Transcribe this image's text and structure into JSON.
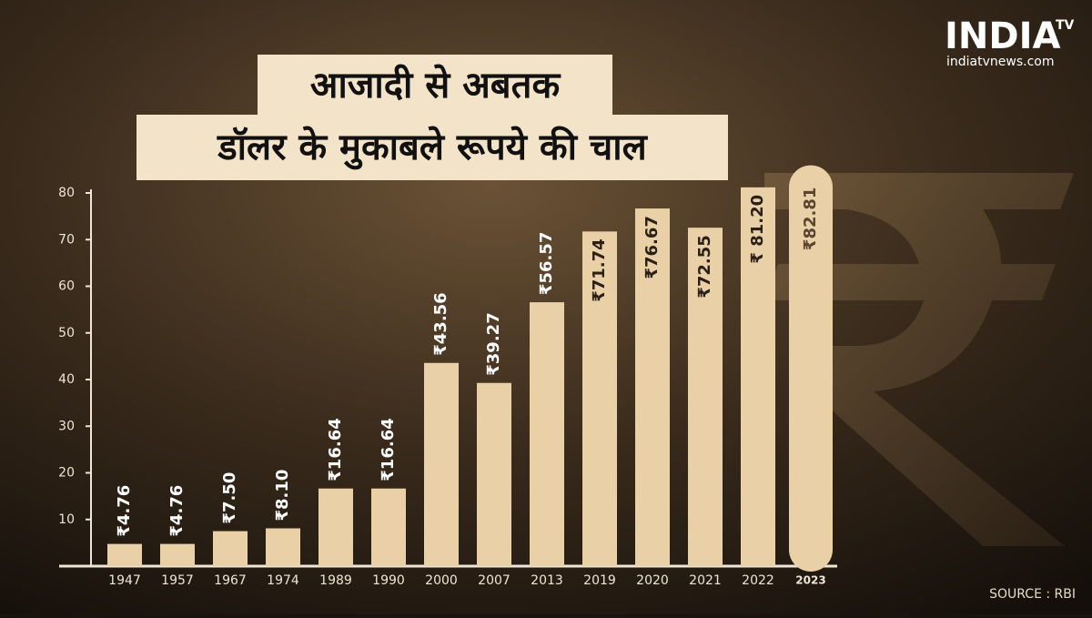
{
  "chart_data": {
    "type": "bar",
    "title_line1": "आजादी से अबतक",
    "title_line2": "डॉलर के मुकाबले रूपये की चाल",
    "categories": [
      "1947",
      "1957",
      "1967",
      "1974",
      "1989",
      "1990",
      "2000",
      "2007",
      "2013",
      "2019",
      "2020",
      "2021",
      "2022",
      "2023"
    ],
    "values": [
      4.76,
      4.76,
      7.5,
      8.1,
      16.64,
      16.64,
      43.56,
      39.27,
      56.57,
      71.74,
      76.67,
      72.55,
      81.2,
      82.81
    ],
    "value_labels": [
      "₹4.76",
      "₹4.76",
      "₹7.50",
      "₹8.10",
      "₹16.64",
      "₹16.64",
      "₹43.56",
      "₹39.27",
      "₹56.57",
      "₹71.74",
      "₹76.67",
      "₹72.55",
      "₹ 81.20",
      "₹82.81"
    ],
    "color": "#e9d0a7",
    "ylim": [
      0,
      80
    ],
    "yticks": [
      10,
      20,
      30,
      40,
      50,
      60,
      70,
      80
    ],
    "source": "SOURCE : RBI",
    "logo": {
      "brand": "INDIA",
      "tv": "TV",
      "site": "indiatvnews.com"
    }
  }
}
